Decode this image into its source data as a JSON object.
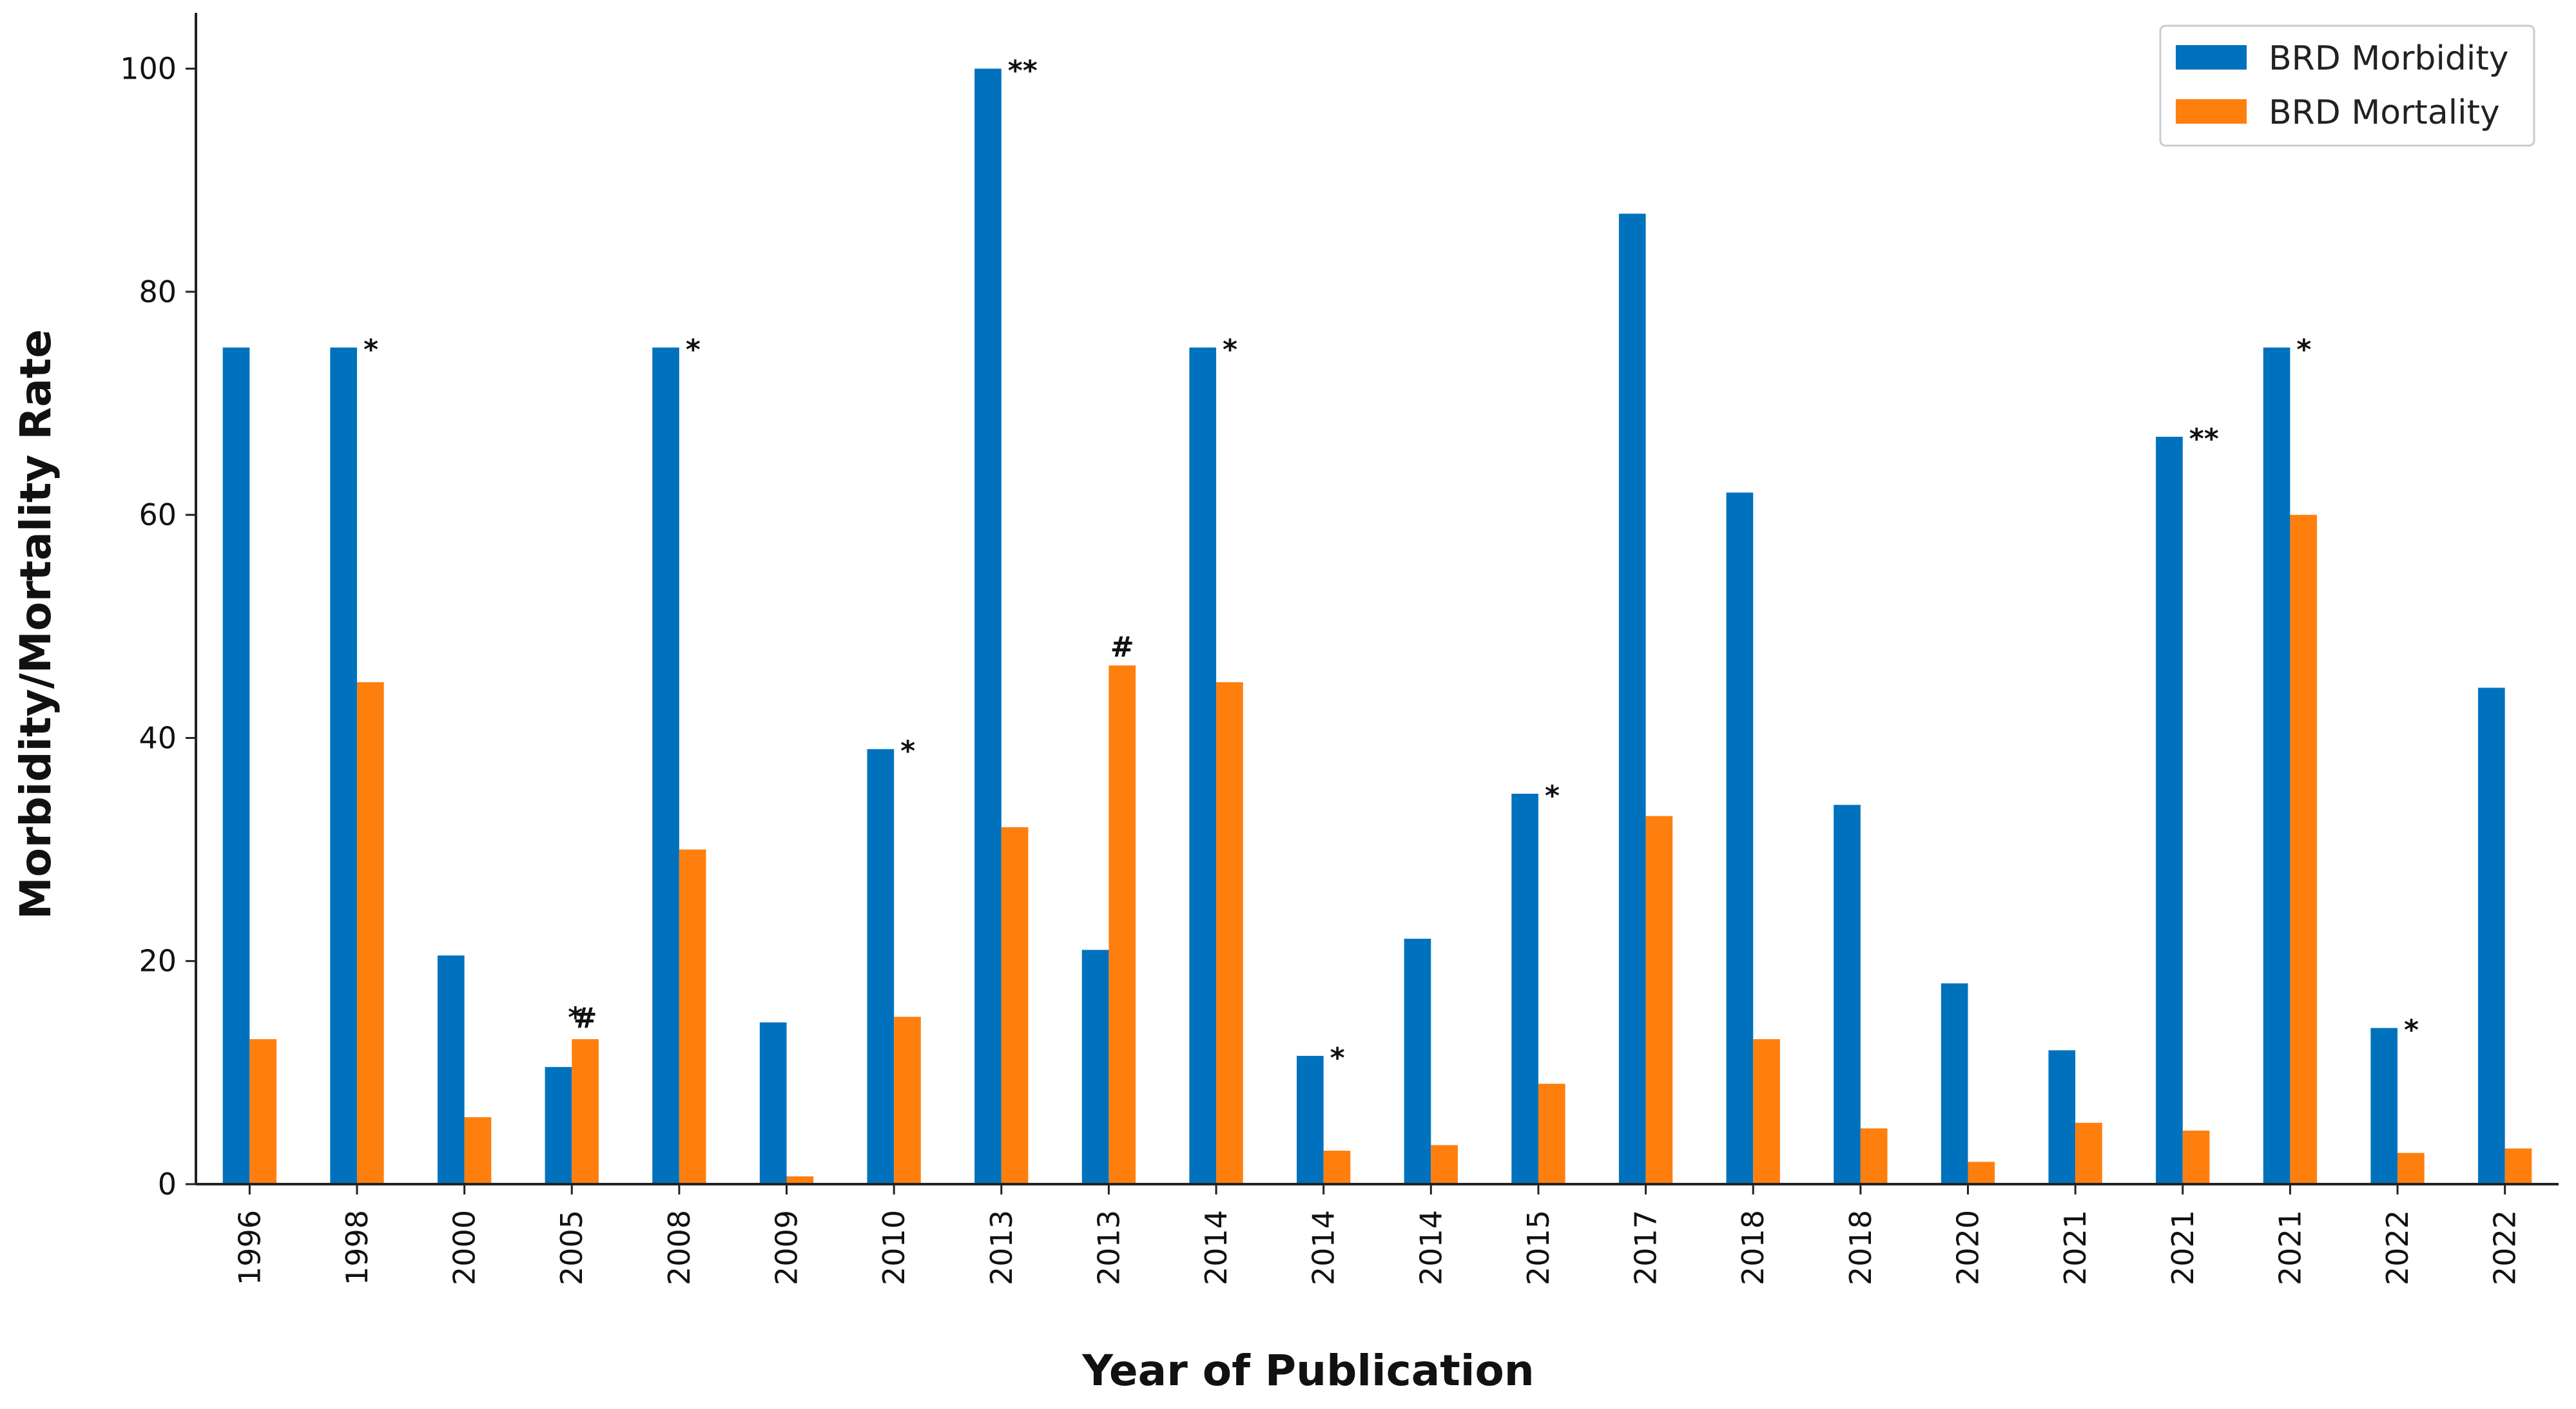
{
  "chart_data": {
    "type": "bar",
    "xlabel": "Year of Publication",
    "ylabel": "Morbidity/Mortality Rate",
    "ylim": [
      0,
      105
    ],
    "yticks": [
      0,
      20,
      40,
      60,
      80,
      100
    ],
    "grid": false,
    "legend_position": "top-right",
    "categories": [
      "1996",
      "1998",
      "2000",
      "2005",
      "2008",
      "2009",
      "2010",
      "2013",
      "2013",
      "2014",
      "2014",
      "2014",
      "2015",
      "2017",
      "2018",
      "2018",
      "2020",
      "2021",
      "2021",
      "2021",
      "2022",
      "2022"
    ],
    "series": [
      {
        "name": "BRD Morbidity",
        "color": "#0072bd",
        "values": [
          75,
          75,
          20.5,
          10.5,
          75,
          14.5,
          39,
          100,
          21,
          75,
          11.5,
          22,
          35,
          87,
          62,
          34,
          18,
          12,
          67,
          75,
          14,
          44.5
        ]
      },
      {
        "name": "BRD Mortality",
        "color": "#ff7f0e",
        "values": [
          13,
          45,
          6,
          13,
          30,
          0.7,
          15,
          32,
          46.5,
          45,
          3,
          3.5,
          9,
          33,
          13,
          5,
          2,
          5.5,
          4.8,
          60,
          2.8,
          3.2
        ]
      }
    ],
    "annotations": [
      {
        "category_index": 1,
        "series": 0,
        "text": "*"
      },
      {
        "category_index": 3,
        "series": 0,
        "text": "*"
      },
      {
        "category_index": 3,
        "series": 1,
        "text": "#"
      },
      {
        "category_index": 4,
        "series": 0,
        "text": "*"
      },
      {
        "category_index": 6,
        "series": 0,
        "text": "*"
      },
      {
        "category_index": 7,
        "series": 0,
        "text": "**"
      },
      {
        "category_index": 8,
        "series": 1,
        "text": "#"
      },
      {
        "category_index": 9,
        "series": 0,
        "text": "*"
      },
      {
        "category_index": 10,
        "series": 0,
        "text": "*"
      },
      {
        "category_index": 12,
        "series": 0,
        "text": "*"
      },
      {
        "category_index": 18,
        "series": 0,
        "text": "**"
      },
      {
        "category_index": 19,
        "series": 0,
        "text": "*"
      },
      {
        "category_index": 20,
        "series": 0,
        "text": "*"
      }
    ]
  }
}
